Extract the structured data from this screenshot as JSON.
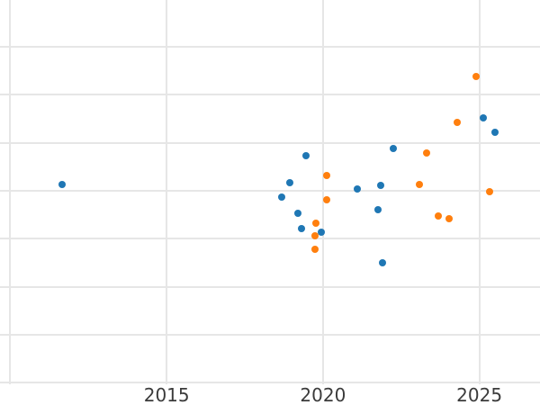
{
  "chart_data": {
    "type": "scatter",
    "title": "",
    "xlabel": "",
    "ylabel": "",
    "grid": true,
    "legend": "none",
    "background_color": "#ffffff",
    "gridline_color": "#e6e6e6",
    "tick_label_color": "#3b3b3b",
    "axes": {
      "x_range": [
        2009.67,
        2026.94
      ],
      "y_range": [
        -0.46,
        7.97
      ],
      "x_gridline_years": [
        2010,
        2015,
        2020,
        2025
      ],
      "y_gridline_values": [
        0,
        1,
        2,
        3,
        4,
        5,
        6,
        7
      ],
      "x_tick_labels": [
        {
          "year": 2015,
          "label": "2015"
        },
        {
          "year": 2020,
          "label": "2020"
        },
        {
          "year": 2025,
          "label": "2025"
        }
      ],
      "y_tick_labels_visible": false
    },
    "series": [
      {
        "name": "blue-series",
        "color": "#1f77b4",
        "marker": "circle",
        "points": [
          {
            "x": 2011.66,
            "y": 4.13
          },
          {
            "x": 2018.68,
            "y": 3.87
          },
          {
            "x": 2018.94,
            "y": 4.17
          },
          {
            "x": 2019.19,
            "y": 3.53
          },
          {
            "x": 2019.31,
            "y": 3.21
          },
          {
            "x": 2019.45,
            "y": 4.73
          },
          {
            "x": 2019.94,
            "y": 3.14
          },
          {
            "x": 2021.09,
            "y": 4.04
          },
          {
            "x": 2021.75,
            "y": 3.6
          },
          {
            "x": 2021.84,
            "y": 4.11
          },
          {
            "x": 2021.9,
            "y": 2.5
          },
          {
            "x": 2022.24,
            "y": 4.88
          },
          {
            "x": 2025.12,
            "y": 5.51
          },
          {
            "x": 2025.49,
            "y": 5.22
          }
        ]
      },
      {
        "name": "orange-series",
        "color": "#ff7f0e",
        "marker": "circle",
        "points": [
          {
            "x": 2019.74,
            "y": 3.06
          },
          {
            "x": 2019.74,
            "y": 2.78
          },
          {
            "x": 2019.77,
            "y": 3.32
          },
          {
            "x": 2020.11,
            "y": 4.32
          },
          {
            "x": 2020.11,
            "y": 3.81
          },
          {
            "x": 2023.08,
            "y": 4.13
          },
          {
            "x": 2023.31,
            "y": 4.78
          },
          {
            "x": 2023.68,
            "y": 3.47
          },
          {
            "x": 2024.03,
            "y": 3.42
          },
          {
            "x": 2024.29,
            "y": 5.42
          },
          {
            "x": 2024.89,
            "y": 6.38
          },
          {
            "x": 2025.32,
            "y": 3.98
          }
        ]
      }
    ]
  }
}
